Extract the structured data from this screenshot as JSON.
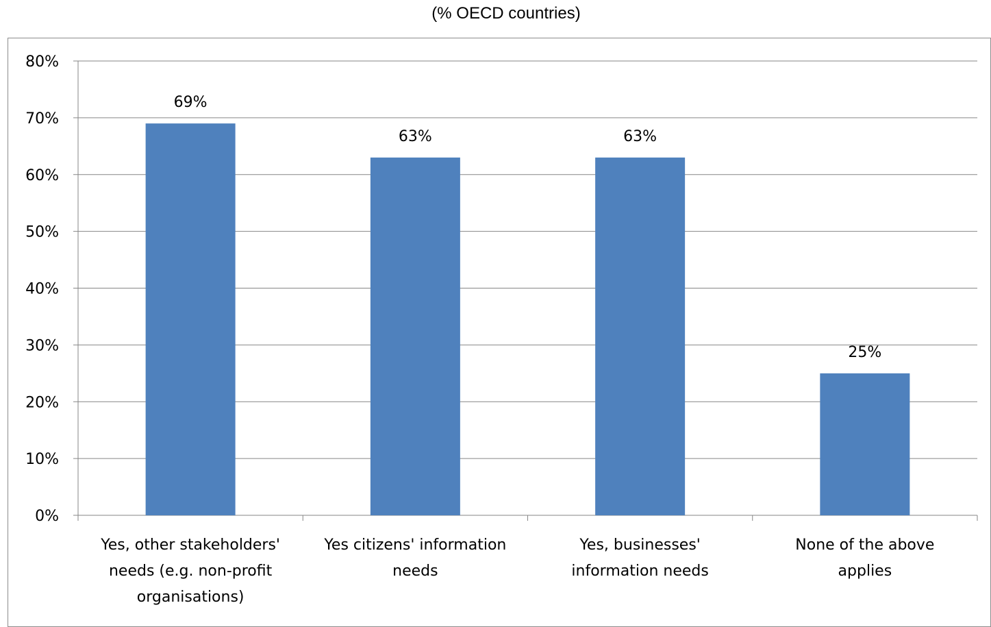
{
  "chart_data": {
    "type": "bar",
    "subtitle": "(% OECD countries)",
    "categories": [
      [
        "Yes, other stakeholders'",
        "needs (e.g. non-profit",
        "organisations)"
      ],
      [
        "Yes citizens' information",
        "needs"
      ],
      [
        "Yes, businesses'",
        "information needs"
      ],
      [
        "None of the above",
        "applies"
      ]
    ],
    "values": [
      69,
      63,
      63,
      25
    ],
    "data_labels": [
      "69%",
      "63%",
      "63%",
      "25%"
    ],
    "y_ticks": [
      "0%",
      "10%",
      "20%",
      "30%",
      "40%",
      "50%",
      "60%",
      "70%",
      "80%"
    ],
    "ylim": [
      0,
      80
    ],
    "grid": true,
    "legend": "none",
    "colors": {
      "bar": "#4F81BD",
      "grid": "#868686",
      "axis": "#868686"
    }
  }
}
